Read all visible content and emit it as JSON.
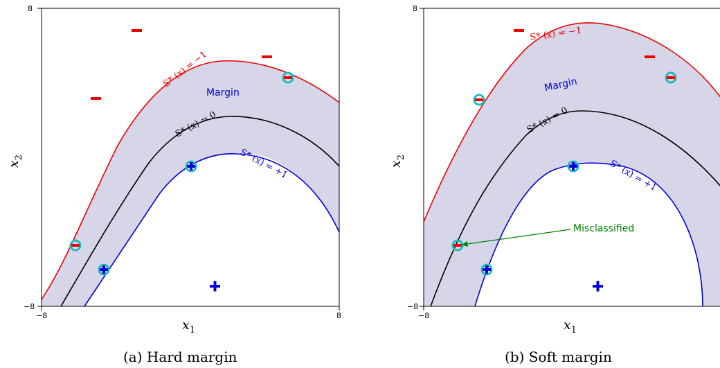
{
  "panels": [
    {
      "caption": "(a)  Hard margin",
      "x_min_label": "−8",
      "x_max_label": "8",
      "y_min_label": "−8",
      "y_max_label": "8",
      "xlabel": "x",
      "xlabel_sub": "1",
      "ylabel": "x",
      "ylabel_sub": "2",
      "margin_label": "Margin",
      "curve_labels": {
        "minus": "S* (x) = −1",
        "zero": "S* (x) = 0",
        "plus": "S* (x) = +1"
      },
      "annotation": ""
    },
    {
      "caption": "(b)  Soft margin",
      "x_min_label": "−8",
      "x_max_label": "",
      "y_min_label": "−8",
      "y_max_label": "8",
      "xlabel": "x",
      "xlabel_sub": "1",
      "ylabel": "x",
      "ylabel_sub": "2",
      "margin_label": "Margin",
      "curve_labels": {
        "minus": "S* (x) = −1",
        "zero": "S* (x) = 0",
        "plus": "S* (x) = +1"
      },
      "annotation": "Misclassified"
    }
  ],
  "colors": {
    "minus_curve": "#ee0000",
    "zero_curve": "#000000",
    "plus_curve": "#0000dd",
    "margin_fill": "#d6d6e8",
    "support_ring": "#22bbbb",
    "annotation": "#008000"
  }
}
